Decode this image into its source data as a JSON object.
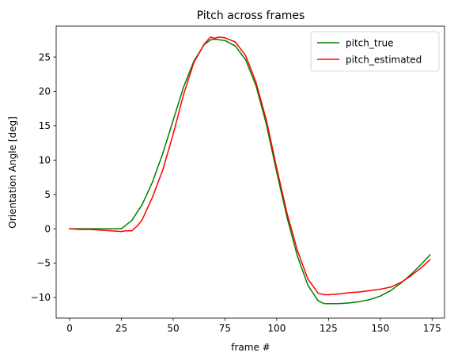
{
  "chart_data": {
    "type": "line",
    "title": "Pitch across frames",
    "xlabel": "frame #",
    "ylabel": "Orientation Angle [deg]",
    "xlim": [
      -6.5,
      181
    ],
    "ylim": [
      -13,
      29.5
    ],
    "xticks": [
      0,
      25,
      50,
      75,
      100,
      125,
      150,
      175
    ],
    "yticks": [
      -10,
      -5,
      0,
      5,
      10,
      15,
      20,
      25
    ],
    "grid": false,
    "legend_position": "top-right",
    "series": [
      {
        "name": "pitch_true",
        "color": "#008000",
        "x": [
          0,
          10,
          20,
          25,
          30,
          35,
          40,
          45,
          50,
          55,
          60,
          65,
          68,
          70,
          75,
          80,
          85,
          90,
          95,
          100,
          105,
          110,
          115,
          120,
          123,
          125,
          130,
          135,
          140,
          145,
          150,
          155,
          160,
          165,
          170,
          174
        ],
        "y": [
          0.0,
          0.0,
          0.0,
          0.0,
          1.2,
          3.5,
          6.8,
          11.0,
          15.8,
          20.6,
          24.4,
          26.8,
          27.5,
          27.6,
          27.4,
          26.6,
          24.6,
          20.8,
          15.2,
          8.2,
          1.6,
          -4.0,
          -8.2,
          -10.5,
          -10.9,
          -10.9,
          -10.9,
          -10.8,
          -10.6,
          -10.3,
          -9.8,
          -9.0,
          -7.9,
          -6.6,
          -5.1,
          -3.8
        ]
      },
      {
        "name": "pitch_estimated",
        "color": "#ff0000",
        "x": [
          0,
          5,
          10,
          15,
          20,
          25,
          27,
          30,
          33,
          35,
          40,
          45,
          50,
          55,
          60,
          65,
          68,
          70,
          72,
          75,
          80,
          85,
          90,
          95,
          100,
          105,
          110,
          115,
          120,
          123,
          125,
          130,
          135,
          140,
          145,
          150,
          155,
          160,
          165,
          170,
          174
        ],
        "y": [
          0.0,
          -0.1,
          -0.1,
          -0.2,
          -0.3,
          -0.4,
          -0.3,
          -0.3,
          0.5,
          1.3,
          4.6,
          8.6,
          13.8,
          19.5,
          24.2,
          26.9,
          27.9,
          27.7,
          27.9,
          27.8,
          27.2,
          25.2,
          21.3,
          15.8,
          8.8,
          2.2,
          -3.2,
          -7.3,
          -9.4,
          -9.6,
          -9.6,
          -9.5,
          -9.3,
          -9.2,
          -9.0,
          -8.8,
          -8.5,
          -7.8,
          -6.8,
          -5.6,
          -4.5
        ]
      }
    ]
  }
}
